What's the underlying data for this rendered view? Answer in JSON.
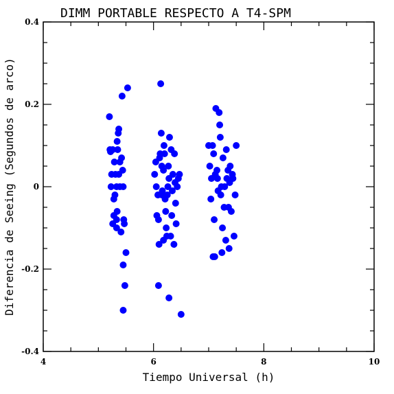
{
  "chart_data": {
    "type": "scatter",
    "title": "DIMM PORTABLE RESPECTO A T4-SPM",
    "xlabel": "Tiempo Universal (h)",
    "ylabel": "Diferencia de Seeing (Segundos de arco)",
    "xlim": [
      4,
      10
    ],
    "ylim": [
      -0.4,
      0.4
    ],
    "x_ticks": [
      4,
      6,
      8,
      10
    ],
    "y_ticks": [
      -0.4,
      -0.2,
      0,
      0.2,
      0.4
    ],
    "x_tick_labels": [
      "4",
      "6",
      "8",
      "10"
    ],
    "y_tick_labels": [
      "-0.4",
      "-0.2",
      "0",
      "0.2",
      "0.4"
    ],
    "grid": false,
    "marker_color": "#0000ff",
    "series": [
      {
        "points": [
          [
            5.2,
            0.17
          ],
          [
            5.21,
            0.09
          ],
          [
            5.22,
            0.085
          ],
          [
            5.24,
            0.03
          ],
          [
            5.26,
            0.09
          ],
          [
            5.23,
            0.0
          ],
          [
            5.26,
            -0.09
          ],
          [
            5.28,
            -0.07
          ],
          [
            5.29,
            0.06
          ],
          [
            5.3,
            -0.02
          ],
          [
            5.33,
            -0.08
          ],
          [
            5.34,
            0.11
          ],
          [
            5.31,
            0.03
          ],
          [
            5.36,
            0.13
          ],
          [
            5.37,
            0.14
          ],
          [
            5.35,
            0.09
          ],
          [
            5.39,
            0.06
          ],
          [
            5.37,
            0.03
          ],
          [
            5.34,
            -0.06
          ],
          [
            5.39,
            0.0
          ],
          [
            5.33,
            -0.1
          ],
          [
            5.41,
            -0.11
          ],
          [
            5.43,
            0.22
          ],
          [
            5.42,
            0.07
          ],
          [
            5.44,
            0.04
          ],
          [
            5.45,
            0.0
          ],
          [
            5.46,
            -0.08
          ],
          [
            5.47,
            -0.09
          ],
          [
            5.45,
            -0.19
          ],
          [
            5.48,
            -0.24
          ],
          [
            5.5,
            -0.16
          ],
          [
            5.45,
            -0.3
          ],
          [
            5.53,
            0.24
          ],
          [
            5.33,
            0.0
          ],
          [
            5.28,
            -0.03
          ],
          [
            6.02,
            0.03
          ],
          [
            6.04,
            0.06
          ],
          [
            6.05,
            0.0
          ],
          [
            6.06,
            -0.07
          ],
          [
            6.08,
            -0.02
          ],
          [
            6.09,
            -0.08
          ],
          [
            6.1,
            -0.14
          ],
          [
            6.12,
            0.08
          ],
          [
            6.14,
            0.13
          ],
          [
            6.13,
            0.25
          ],
          [
            6.15,
            0.05
          ],
          [
            6.16,
            -0.01
          ],
          [
            6.15,
            -0.02
          ],
          [
            6.18,
            0.04
          ],
          [
            6.2,
            0.08
          ],
          [
            6.21,
            -0.03
          ],
          [
            6.19,
            0.1
          ],
          [
            6.22,
            -0.06
          ],
          [
            6.23,
            -0.1
          ],
          [
            6.24,
            -0.12
          ],
          [
            6.25,
            -0.02
          ],
          [
            6.26,
            0.0
          ],
          [
            6.28,
            0.02
          ],
          [
            6.27,
            0.05
          ],
          [
            6.29,
            0.12
          ],
          [
            6.31,
            -0.12
          ],
          [
            6.32,
            0.09
          ],
          [
            6.34,
            -0.01
          ],
          [
            6.35,
            0.03
          ],
          [
            6.33,
            -0.07
          ],
          [
            6.37,
            -0.14
          ],
          [
            6.38,
            0.08
          ],
          [
            6.39,
            0.01
          ],
          [
            6.4,
            -0.04
          ],
          [
            6.41,
            -0.09
          ],
          [
            6.43,
            0.0
          ],
          [
            6.45,
            0.02
          ],
          [
            6.47,
            0.03
          ],
          [
            6.11,
            0.07
          ],
          [
            6.09,
            -0.24
          ],
          [
            6.28,
            -0.27
          ],
          [
            6.5,
            -0.31
          ],
          [
            6.08,
            -0.02
          ],
          [
            6.18,
            -0.13
          ],
          [
            7.0,
            0.1
          ],
          [
            7.02,
            0.05
          ],
          [
            7.04,
            -0.03
          ],
          [
            7.05,
            0.02
          ],
          [
            7.07,
            0.1
          ],
          [
            7.09,
            0.08
          ],
          [
            7.1,
            -0.08
          ],
          [
            7.11,
            -0.17
          ],
          [
            7.13,
            0.19
          ],
          [
            7.15,
            0.04
          ],
          [
            7.16,
            0.02
          ],
          [
            7.17,
            -0.01
          ],
          [
            7.19,
            0.18
          ],
          [
            7.2,
            0.15
          ],
          [
            7.21,
            0.12
          ],
          [
            7.22,
            -0.02
          ],
          [
            7.23,
            0.0
          ],
          [
            7.25,
            -0.1
          ],
          [
            7.26,
            0.07
          ],
          [
            7.28,
            -0.05
          ],
          [
            7.29,
            0.0
          ],
          [
            7.31,
            -0.13
          ],
          [
            7.32,
            0.09
          ],
          [
            7.33,
            0.02
          ],
          [
            7.35,
            0.04
          ],
          [
            7.36,
            -0.05
          ],
          [
            7.38,
            0.01
          ],
          [
            7.39,
            0.05
          ],
          [
            7.41,
            -0.06
          ],
          [
            7.43,
            0.03
          ],
          [
            7.44,
            0.02
          ],
          [
            7.46,
            -0.12
          ],
          [
            7.48,
            -0.02
          ],
          [
            7.5,
            0.1
          ],
          [
            7.12,
            0.03
          ],
          [
            7.24,
            -0.16
          ],
          [
            7.37,
            -0.15
          ],
          [
            7.08,
            -0.17
          ]
        ]
      }
    ]
  }
}
